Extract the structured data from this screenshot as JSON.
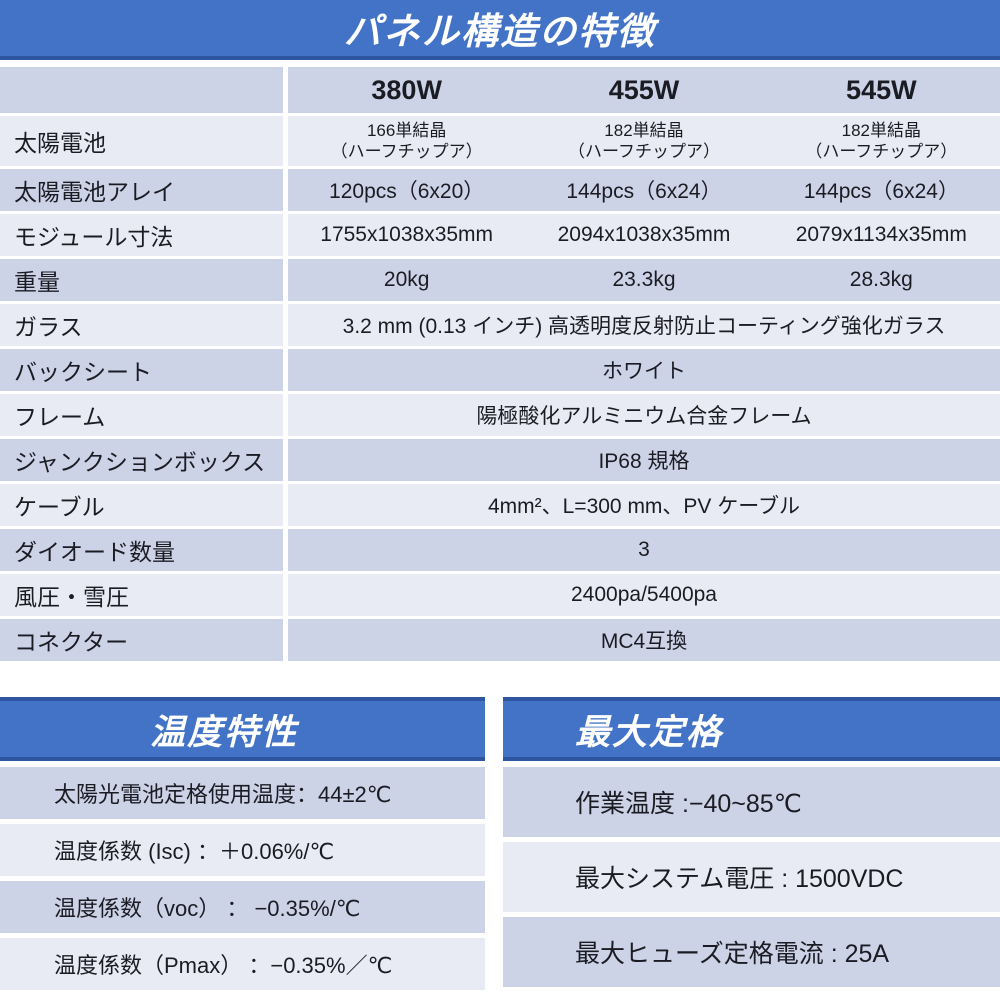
{
  "title": "パネル構造の特徴",
  "colors": {
    "banner_blue": "#4273c6",
    "banner_edge_dark_blue": "#2d55a0",
    "row_dark": "#ccd3e6",
    "row_light": "#e9ebf4",
    "text": "#1b1b24",
    "title_text": "#ffffff"
  },
  "spec_table": {
    "columns": [
      "380W",
      "455W",
      "545W"
    ],
    "rows": [
      {
        "label": "太陽電池",
        "small": true,
        "values": [
          "166単結晶\n（ハーフチップア）",
          "182単結晶\n（ハーフチップア）",
          "182単結晶\n（ハーフチップア）"
        ]
      },
      {
        "label": "太陽電池アレイ",
        "values": [
          "120pcs（6x20）",
          "144pcs（6x24）",
          "144pcs（6x24）"
        ]
      },
      {
        "label": "モジュール寸法",
        "values": [
          "1755x1038x35mm",
          "2094x1038x35mm",
          "2079x1134x35mm"
        ]
      },
      {
        "label": "重量",
        "values": [
          "20kg",
          "23.3kg",
          "28.3kg"
        ]
      },
      {
        "label": "ガラス",
        "span": "3.2 mm (0.13 インチ) 高透明度反射防止コーティング強化ガラス"
      },
      {
        "label": "バックシート",
        "span": "ホワイト"
      },
      {
        "label": "フレーム",
        "span": "陽極酸化アルミニウム合金フレーム"
      },
      {
        "label": "ジャンクションボックス",
        "span": "IP68 規格"
      },
      {
        "label": "ケーブル",
        "span": "4mm²、L=300 mm、PV ケーブル"
      },
      {
        "label": "ダイオード数量",
        "span": "3"
      },
      {
        "label": "風圧・雪圧",
        "span": "2400pa/5400pa"
      },
      {
        "label": "コネクター",
        "span": "MC4互換"
      }
    ]
  },
  "temp_section": {
    "title": "温度特性",
    "rows": [
      "太陽光電池定格使用温度：44±2℃",
      "温度係数 (Isc) ：＋0.06%/℃",
      "温度係数（voc） ： −0.35%/℃",
      "温度係数（Pmax） ：−0.35%／℃"
    ]
  },
  "max_section": {
    "title": "最大定格",
    "rows": [
      "作業温度 :−40~85℃",
      "最大システム電圧 : 1500VDC",
      "最大ヒューズ定格電流 : 25A"
    ]
  }
}
